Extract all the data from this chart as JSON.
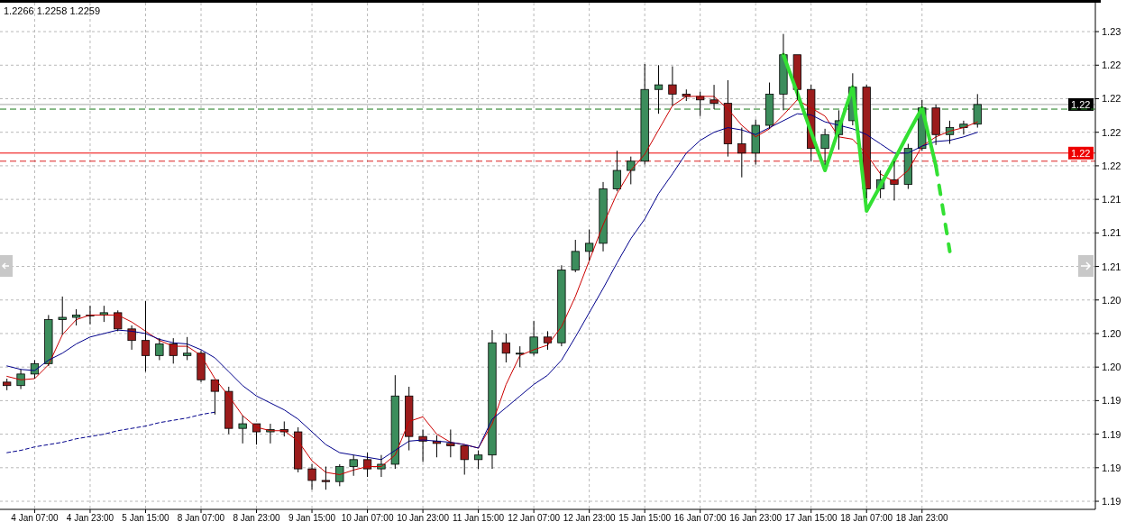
{
  "chart_data": {
    "type": "candlestick",
    "annotations": [
      "1.2266 1.2258 1.2259"
    ],
    "categories": [
      null,
      null,
      "4 Jan 07:00",
      null,
      null,
      null,
      "4 Jan 23:00",
      null,
      null,
      null,
      "5 Jan 15:00",
      null,
      null,
      null,
      "8 Jan 07:00",
      null,
      null,
      null,
      "8 Jan 23:00",
      null,
      null,
      null,
      "9 Jan 15:00",
      null,
      null,
      null,
      "10 Jan 07:00",
      null,
      null,
      null,
      "10 Jan 23:00",
      null,
      null,
      null,
      "11 Jan 15:00",
      null,
      null,
      null,
      "12 Jan 07:00",
      null,
      null,
      null,
      "12 Jan 23:00",
      null,
      null,
      null,
      "15 Jan 15:00",
      null,
      null,
      null,
      "16 Jan 07:00",
      null,
      null,
      null,
      "16 Jan 23:00",
      null,
      null,
      null,
      "17 Jan 15:00",
      null,
      null,
      null,
      "18 Jan 07:00",
      null,
      null,
      null,
      "18 Jan 23:00",
      null,
      null,
      null,
      null,
      null,
      null,
      null,
      null,
      null,
      null,
      null,
      null
    ],
    "colors": [
      "#9b1c1c",
      "#3c8d5c",
      "#3c8d5c",
      "#3c8d5c",
      "#3c8d5c",
      "#3c8d5c",
      "#3c8d5c",
      "#3c8d5c",
      "#9b1c1c",
      "#9b1c1c",
      "#9b1c1c",
      "#3c8d5c",
      "#9b1c1c",
      "#3c8d5c",
      "#9b1c1c",
      "#9b1c1c",
      "#9b1c1c",
      "#3c8d5c",
      "#9b1c1c",
      "#3c8d5c",
      "#9b1c1c",
      "#9b1c1c",
      "#9b1c1c",
      "#9b1c1c",
      "#3c8d5c",
      "#3c8d5c",
      "#9b1c1c",
      "#3c8d5c",
      "#3c8d5c",
      "#9b1c1c",
      "#9b1c1c",
      "#9b1c1c",
      "#9b1c1c",
      "#9b1c1c",
      "#3c8d5c",
      "#3c8d5c",
      "#9b1c1c",
      "#3c8d5c",
      "#3c8d5c",
      "#9b1c1c",
      "#3c8d5c",
      "#3c8d5c",
      "#3c8d5c",
      "#3c8d5c",
      "#3c8d5c",
      "#3c8d5c",
      "#3c8d5c",
      "#3c8d5c",
      "#9b1c1c",
      "#9b1c1c",
      "#9b1c1c",
      "#9b1c1c",
      "#9b1c1c",
      "#9b1c1c",
      "#3c8d5c",
      "#3c8d5c",
      "#3c8d5c",
      "#9b1c1c",
      "#9b1c1c",
      "#3c8d5c",
      "#3c8d5c",
      "#3c8d5c",
      "#9b1c1c",
      "#3c8d5c",
      "#9b1c1c",
      "#3c8d5c",
      "#3c8d5c",
      "#9b1c1c",
      "#3c8d5c",
      "#3c8d5c",
      "#3c8d5c",
      null,
      null,
      null,
      null,
      null,
      null,
      null,
      null
    ],
    "ohlc": [
      [
        1.1965,
        1.1968,
        1.1958,
        1.1962
      ],
      [
        1.1962,
        1.1976,
        1.1959,
        1.1972
      ],
      [
        1.1972,
        1.1984,
        1.1968,
        1.1981
      ],
      [
        1.1981,
        1.2023,
        1.1979,
        1.2019
      ],
      [
        1.2019,
        1.2039,
        1.2006,
        1.2021
      ],
      [
        1.2021,
        1.2028,
        1.2014,
        1.2023
      ],
      [
        1.2023,
        1.2031,
        1.2015,
        1.2023
      ],
      [
        1.2023,
        1.2031,
        1.2017,
        1.2025
      ],
      [
        1.2025,
        1.2027,
        1.2009,
        1.2011
      ],
      [
        1.2011,
        1.2014,
        1.1993,
        1.2001
      ],
      [
        1.2001,
        1.2035,
        1.1974,
        1.1988
      ],
      [
        1.1988,
        1.2003,
        1.1984,
        1.1998
      ],
      [
        1.1998,
        1.2003,
        1.1981,
        1.1988
      ],
      [
        1.1988,
        1.2004,
        1.1984,
        1.199
      ],
      [
        1.199,
        1.1992,
        1.1965,
        1.1967
      ],
      [
        1.1967,
        1.1967,
        1.1937,
        1.1957
      ],
      [
        1.1957,
        1.1961,
        1.192,
        1.1925
      ],
      [
        1.1925,
        1.1936,
        1.1912,
        1.1929
      ],
      [
        1.1929,
        1.1929,
        1.1911,
        1.1922
      ],
      [
        1.1922,
        1.1929,
        1.1912,
        1.1924
      ],
      [
        1.1924,
        1.1931,
        1.1918,
        1.1922
      ],
      [
        1.1922,
        1.1926,
        1.1887,
        1.189
      ],
      [
        1.189,
        1.1894,
        1.1872,
        1.188
      ],
      [
        1.188,
        1.1892,
        1.1872,
        1.1879
      ],
      [
        1.1879,
        1.1894,
        1.1875,
        1.1892
      ],
      [
        1.1892,
        1.1902,
        1.1884,
        1.1898
      ],
      [
        1.1898,
        1.1904,
        1.1883,
        1.189
      ],
      [
        1.189,
        1.1902,
        1.1883,
        1.1894
      ],
      [
        1.1894,
        1.1971,
        1.189,
        1.1953
      ],
      [
        1.1953,
        1.1961,
        1.1906,
        1.1918
      ],
      [
        1.1918,
        1.1924,
        1.1896,
        1.1914
      ],
      [
        1.1914,
        1.1919,
        1.19,
        1.1912
      ],
      [
        1.1912,
        1.1924,
        1.19,
        1.191
      ],
      [
        1.191,
        1.191,
        1.1885,
        1.1898
      ],
      [
        1.1898,
        1.1906,
        1.189,
        1.1902
      ],
      [
        1.1902,
        1.201,
        1.189,
        1.1999
      ],
      [
        1.1999,
        1.2007,
        1.1982,
        1.199
      ],
      [
        1.199,
        1.1996,
        1.1978,
        1.199
      ],
      [
        1.199,
        1.2018,
        1.1988,
        1.2004
      ],
      [
        1.2004,
        1.2009,
        1.1993,
        1.1999
      ],
      [
        1.1999,
        1.2066,
        1.1996,
        1.2062
      ],
      [
        1.2062,
        1.2088,
        1.206,
        1.2078
      ],
      [
        1.2078,
        1.2097,
        1.207,
        1.2085
      ],
      [
        1.2085,
        1.2138,
        1.2078,
        1.2132
      ],
      [
        1.2132,
        1.2165,
        1.213,
        1.2148
      ],
      [
        1.2148,
        1.216,
        1.2136,
        1.2156
      ],
      [
        1.2156,
        1.224,
        1.2153,
        1.2218
      ],
      [
        1.2218,
        1.2239,
        1.2197,
        1.2222
      ],
      [
        1.2222,
        1.2238,
        1.2204,
        1.2214
      ],
      [
        1.2214,
        1.2218,
        1.2208,
        1.2212
      ],
      [
        1.2212,
        1.2216,
        1.2195,
        1.2209
      ],
      [
        1.2209,
        1.2222,
        1.2201,
        1.2206
      ],
      [
        1.2206,
        1.2226,
        1.216,
        1.2171
      ],
      [
        1.2171,
        1.2185,
        1.2142,
        1.2163
      ],
      [
        1.2163,
        1.2192,
        1.2153,
        1.2187
      ],
      [
        1.2187,
        1.2224,
        1.2184,
        1.2214
      ],
      [
        1.2214,
        1.2266,
        1.22,
        1.2248
      ],
      [
        1.2248,
        1.2248,
        1.2209,
        1.2218
      ],
      [
        1.2218,
        1.2222,
        1.2156,
        1.2167
      ],
      [
        1.2167,
        1.2184,
        1.2153,
        1.2179
      ],
      [
        1.2179,
        1.22,
        1.2166,
        1.2191
      ],
      [
        1.2191,
        1.2232,
        1.2187,
        1.222
      ],
      [
        1.222,
        1.2222,
        1.2124,
        1.2132
      ],
      [
        1.2132,
        1.2148,
        1.2124,
        1.214
      ],
      [
        1.214,
        1.2156,
        1.2122,
        1.2136
      ],
      [
        1.2136,
        1.2171,
        1.2132,
        1.2167
      ],
      [
        1.2167,
        1.2209,
        1.2165,
        1.2202
      ],
      [
        1.2202,
        1.2205,
        1.217,
        1.2179
      ],
      [
        1.2179,
        1.2191,
        1.2171,
        1.2185
      ],
      [
        1.2185,
        1.2191,
        1.2179,
        1.2188
      ],
      [
        1.2188,
        1.2214,
        1.2185,
        1.2205
      ],
      null,
      null,
      null,
      null,
      null,
      null,
      null,
      null
    ],
    "series": [
      {
        "type": "line",
        "color": "#cc0000",
        "values": [
          1.197,
          1.1967,
          1.1968,
          1.198,
          1.2006,
          1.2019,
          1.2023,
          1.2023,
          1.2023,
          1.2017,
          1.2009,
          1.2001,
          1.1996,
          1.1996,
          1.1988,
          1.1968,
          1.1953,
          1.1936,
          1.1926,
          1.1923,
          1.1923,
          1.1914,
          1.1897,
          1.1887,
          1.1885,
          1.1889,
          1.1892,
          1.1892,
          1.1902,
          1.1931,
          1.1935,
          1.192,
          1.1913,
          1.1911,
          1.1908,
          1.1929,
          1.1963,
          1.1988,
          1.1993,
          1.1997,
          1.2013,
          1.2039,
          1.207,
          1.2101,
          1.2128,
          1.2148,
          1.2162,
          1.2183,
          1.2204,
          1.2212,
          1.2212,
          1.2212,
          1.2201,
          1.2187,
          1.2177,
          1.2184,
          1.2196,
          1.2209,
          1.2202,
          1.2195,
          1.2177,
          1.2175,
          1.2162,
          1.2145,
          1.2138,
          1.2148,
          1.2169,
          1.2177,
          1.2182,
          1.2185,
          1.219,
          null,
          null,
          null,
          null,
          null,
          null,
          null,
          null
        ]
      },
      {
        "type": "line",
        "color": "#00008b",
        "values": [
          1.1979,
          1.1976,
          1.1975,
          1.1984,
          1.199,
          1.1998,
          1.2004,
          1.2007,
          1.201,
          1.2009,
          1.2007,
          1.2002,
          1.1999,
          1.1998,
          1.1993,
          1.1986,
          1.1974,
          1.1962,
          1.1953,
          1.1947,
          1.1941,
          1.1933,
          1.1922,
          1.1911,
          1.1904,
          1.1902,
          1.19,
          1.1898,
          1.1906,
          1.1914,
          1.1915,
          1.1914,
          1.1913,
          1.1911,
          1.1908,
          1.1933,
          1.1943,
          1.1953,
          1.1963,
          1.1971,
          1.1984,
          1.2004,
          1.2025,
          1.2046,
          1.2068,
          1.2089,
          1.2106,
          1.2128,
          1.2145,
          1.2163,
          1.2174,
          1.2181,
          1.2185,
          1.2183,
          1.2179,
          1.2185,
          1.2191,
          1.2197,
          1.2196,
          1.219,
          1.2187,
          1.2184,
          1.2179,
          1.2171,
          1.2163,
          1.2163,
          1.2169,
          1.2173,
          1.2174,
          1.2177,
          1.2181,
          null,
          null,
          null,
          null,
          null,
          null,
          null,
          null
        ]
      },
      {
        "type": "line",
        "color": "#00008b",
        "line_style": "dotted",
        "values": [
          1.1904,
          1.1906,
          1.1909,
          1.1911,
          1.1913,
          1.1916,
          1.1918,
          1.192,
          1.1923,
          1.1925,
          1.1927,
          1.193,
          1.1932,
          1.1934,
          1.1937,
          1.1939,
          null,
          null,
          null,
          null,
          null,
          null,
          null,
          null,
          null,
          null,
          null,
          null,
          null,
          null,
          null,
          null,
          null,
          null,
          null,
          null,
          null,
          null,
          null,
          null,
          null,
          null,
          null,
          null,
          null,
          null,
          null,
          null,
          null,
          null,
          null,
          null,
          null,
          null,
          null,
          null,
          null,
          null,
          null,
          null,
          null,
          null,
          null,
          null,
          null,
          null,
          null,
          null,
          null,
          null,
          null,
          null,
          null,
          null,
          null,
          null,
          null,
          null,
          null
        ]
      },
      {
        "type": "line",
        "color": "#33e033",
        "values": [
          null,
          null,
          null,
          null,
          null,
          null,
          null,
          null,
          null,
          null,
          null,
          null,
          null,
          null,
          null,
          null,
          null,
          null,
          null,
          null,
          null,
          null,
          null,
          null,
          null,
          null,
          null,
          null,
          null,
          null,
          null,
          null,
          null,
          null,
          null,
          null,
          null,
          null,
          null,
          null,
          null,
          null,
          null,
          null,
          null,
          null,
          null,
          null,
          null,
          null,
          null,
          null,
          null,
          null,
          null,
          null,
          1.2248,
          1.2215,
          1.2181,
          1.2148,
          1.2184,
          1.222,
          1.2113,
          1.2135,
          1.2157,
          1.218,
          1.2202,
          1.2152,
          null,
          null,
          null,
          null,
          null,
          null,
          null,
          null,
          null,
          null,
          null
        ]
      },
      {
        "type": "line",
        "color": "#33e033",
        "line_style": "dashed",
        "values": [
          null,
          null,
          null,
          null,
          null,
          null,
          null,
          null,
          null,
          null,
          null,
          null,
          null,
          null,
          null,
          null,
          null,
          null,
          null,
          null,
          null,
          null,
          null,
          null,
          null,
          null,
          null,
          null,
          null,
          null,
          null,
          null,
          null,
          null,
          null,
          null,
          null,
          null,
          null,
          null,
          null,
          null,
          null,
          null,
          null,
          null,
          null,
          null,
          null,
          null,
          null,
          null,
          null,
          null,
          null,
          null,
          null,
          null,
          null,
          null,
          null,
          null,
          null,
          null,
          null,
          null,
          null,
          1.2152,
          1.2078,
          null,
          null,
          null,
          null,
          null,
          null,
          null,
          null,
          null,
          null
        ]
      }
    ],
    "ylim": [
      1.1855,
      1.2293
    ],
    "yticks": [
      {
        "value": 1.2268,
        "label": "1.23"
      },
      {
        "value": 1.2239,
        "label": "1.22"
      },
      {
        "value": 1.221,
        "label": "1.22"
      },
      {
        "value": 1.2181,
        "label": "1.22"
      },
      {
        "value": 1.2152,
        "label": "1.22"
      },
      {
        "value": 1.2123,
        "label": "1.21"
      },
      {
        "value": 1.2094,
        "label": "1.21"
      },
      {
        "value": 1.2065,
        "label": "1.21"
      },
      {
        "value": 1.2036,
        "label": "1.20"
      },
      {
        "value": 1.2007,
        "label": "1.20"
      },
      {
        "value": 1.1978,
        "label": "1.20"
      },
      {
        "value": 1.1949,
        "label": "1.19"
      },
      {
        "value": 1.192,
        "label": "1.19"
      },
      {
        "value": 1.1891,
        "label": "1.19"
      },
      {
        "value": 1.1862,
        "label": "1.19"
      }
    ],
    "ref_lines": [
      {
        "axis": "y",
        "value": 1.2205,
        "label": "1.22",
        "color": "#000000",
        "line_style": "solid"
      },
      {
        "axis": "y",
        "value": 1.2201,
        "color": "#1b7a1b",
        "line_style": "dashed"
      },
      {
        "axis": "y",
        "value": 1.2163,
        "label": "1.22",
        "color": "#ee0000",
        "line_style": "solid"
      },
      {
        "axis": "y",
        "value": 1.2156,
        "color": "#dd2222",
        "line_style": "dashed"
      }
    ],
    "grid": true
  }
}
